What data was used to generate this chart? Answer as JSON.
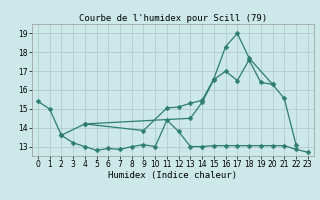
{
  "title": "Courbe de l'humidex pour Scill (79)",
  "xlabel": "Humidex (Indice chaleur)",
  "x": [
    0,
    1,
    2,
    3,
    4,
    5,
    6,
    7,
    8,
    9,
    10,
    11,
    12,
    13,
    14,
    15,
    16,
    17,
    18,
    19,
    20,
    21,
    22,
    23
  ],
  "line1": [
    15.4,
    15.0,
    13.6,
    13.2,
    13.0,
    12.8,
    12.9,
    12.85,
    13.0,
    13.1,
    13.0,
    14.4,
    13.8,
    13.0,
    13.0,
    13.05,
    13.05,
    13.05,
    13.05,
    13.05,
    13.05,
    13.05,
    12.85,
    12.7
  ],
  "line2": [
    null,
    null,
    13.6,
    null,
    14.2,
    null,
    null,
    null,
    null,
    13.85,
    null,
    15.05,
    15.1,
    15.3,
    15.45,
    16.6,
    18.3,
    19.0,
    17.7,
    null,
    16.3,
    15.55,
    13.1,
    null
  ],
  "line3": [
    null,
    null,
    null,
    null,
    14.2,
    null,
    null,
    null,
    null,
    null,
    null,
    null,
    null,
    14.5,
    15.35,
    16.55,
    17.0,
    16.5,
    17.6,
    16.4,
    16.3,
    null,
    null,
    null
  ],
  "ylim": [
    12.5,
    19.5
  ],
  "xlim": [
    -0.5,
    23.5
  ],
  "bg_color": "#cce8e8",
  "grid_color": "#b0cccc",
  "line_color": "#2e7d6e",
  "yticks": [
    13,
    14,
    15,
    16,
    17,
    18,
    19
  ],
  "xticks": [
    0,
    1,
    2,
    3,
    4,
    5,
    6,
    7,
    8,
    9,
    10,
    11,
    12,
    13,
    14,
    15,
    16,
    17,
    18,
    19,
    20,
    21,
    22,
    23
  ],
  "title_fontsize": 6.5,
  "xlabel_fontsize": 6.5,
  "tick_fontsize": 5.5,
  "marker_size": 2.5,
  "line_width": 0.9
}
